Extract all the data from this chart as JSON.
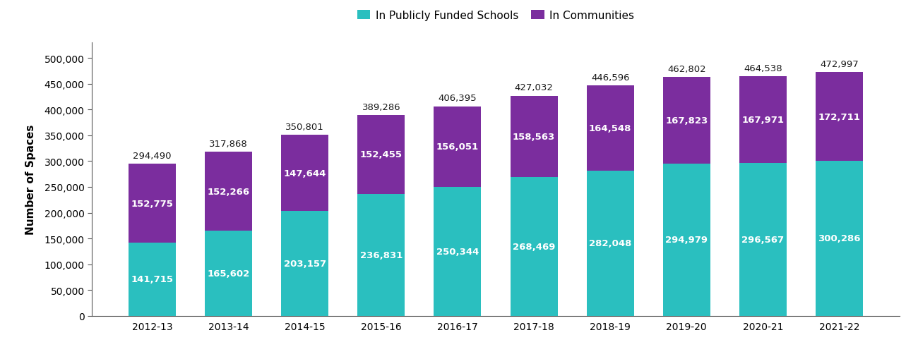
{
  "years": [
    "2012-13",
    "2013-14",
    "2014-15",
    "2015-16",
    "2016-17",
    "2017-18",
    "2018-19",
    "2019-20",
    "2020-21",
    "2021-22"
  ],
  "schools": [
    141715,
    165602,
    203157,
    236831,
    250344,
    268469,
    282048,
    294979,
    296567,
    300286
  ],
  "communities": [
    152775,
    152266,
    147644,
    152455,
    156051,
    158563,
    164548,
    167823,
    167971,
    172711
  ],
  "totals": [
    294490,
    317868,
    350801,
    389286,
    406395,
    427032,
    446596,
    462802,
    464538,
    472997
  ],
  "schools_color": "#2ABFBF",
  "communities_color": "#7B2D9E",
  "bar_width": 0.62,
  "ylim": [
    0,
    530000
  ],
  "yticks": [
    0,
    50000,
    100000,
    150000,
    200000,
    250000,
    300000,
    350000,
    400000,
    450000,
    500000
  ],
  "ylabel": "Number of Spaces",
  "legend_schools": "In Publicly Funded Schools",
  "legend_communities": "In Communities",
  "label_fontsize": 9.5,
  "tick_fontsize": 10,
  "ylabel_fontsize": 11,
  "total_fontsize": 9.5,
  "legend_fontsize": 11,
  "background_color": "#ffffff"
}
